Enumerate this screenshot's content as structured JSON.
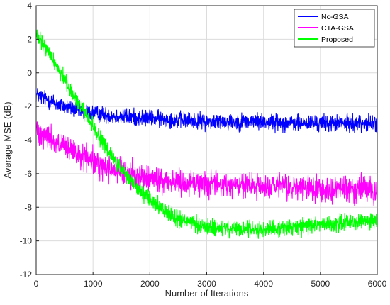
{
  "chart_data": {
    "type": "line",
    "title": "",
    "xlabel": "Number of Iterations",
    "ylabel": "Average MSE (dB)",
    "xlim": [
      0,
      6000
    ],
    "ylim": [
      -12,
      4
    ],
    "xticks": [
      0,
      1000,
      2000,
      3000,
      4000,
      5000,
      6000
    ],
    "yticks": [
      4,
      2,
      0,
      -2,
      -4,
      -6,
      -8,
      -10,
      -12
    ],
    "grid": true,
    "legend_position": "top-right",
    "series": [
      {
        "name": "Nc-GSA",
        "color": "#0000ff",
        "x": [
          0,
          200,
          400,
          600,
          800,
          1000,
          1200,
          1500,
          2000,
          2500,
          3000,
          3500,
          4000,
          4500,
          5000,
          5500,
          6000
        ],
        "y": [
          -1.3,
          -1.6,
          -1.9,
          -2.1,
          -2.3,
          -2.4,
          -2.5,
          -2.6,
          -2.7,
          -2.8,
          -2.9,
          -2.9,
          -2.9,
          -3.0,
          -3.0,
          -3.0,
          -3.0
        ],
        "noise": 0.45
      },
      {
        "name": "CTA-GSA",
        "color": "#ff00ff",
        "x": [
          0,
          200,
          400,
          600,
          800,
          1000,
          1200,
          1500,
          2000,
          2500,
          3000,
          3500,
          4000,
          4500,
          5000,
          5500,
          6000
        ],
        "y": [
          -3.3,
          -3.8,
          -4.3,
          -4.6,
          -5.0,
          -5.3,
          -5.6,
          -5.9,
          -6.3,
          -6.5,
          -6.6,
          -6.7,
          -6.8,
          -6.8,
          -6.9,
          -6.9,
          -7.0
        ],
        "noise": 0.7
      },
      {
        "name": "Proposed",
        "color": "#00ff00",
        "x": [
          0,
          200,
          400,
          600,
          800,
          1000,
          1200,
          1500,
          2000,
          2500,
          3000,
          3500,
          4000,
          4500,
          5000,
          5500,
          6000
        ],
        "y": [
          2.2,
          1.3,
          0.2,
          -1.0,
          -2.1,
          -3.2,
          -4.3,
          -5.8,
          -7.6,
          -8.7,
          -9.2,
          -9.3,
          -9.3,
          -9.2,
          -9.0,
          -8.9,
          -8.8
        ],
        "noise": 0.45
      }
    ]
  }
}
